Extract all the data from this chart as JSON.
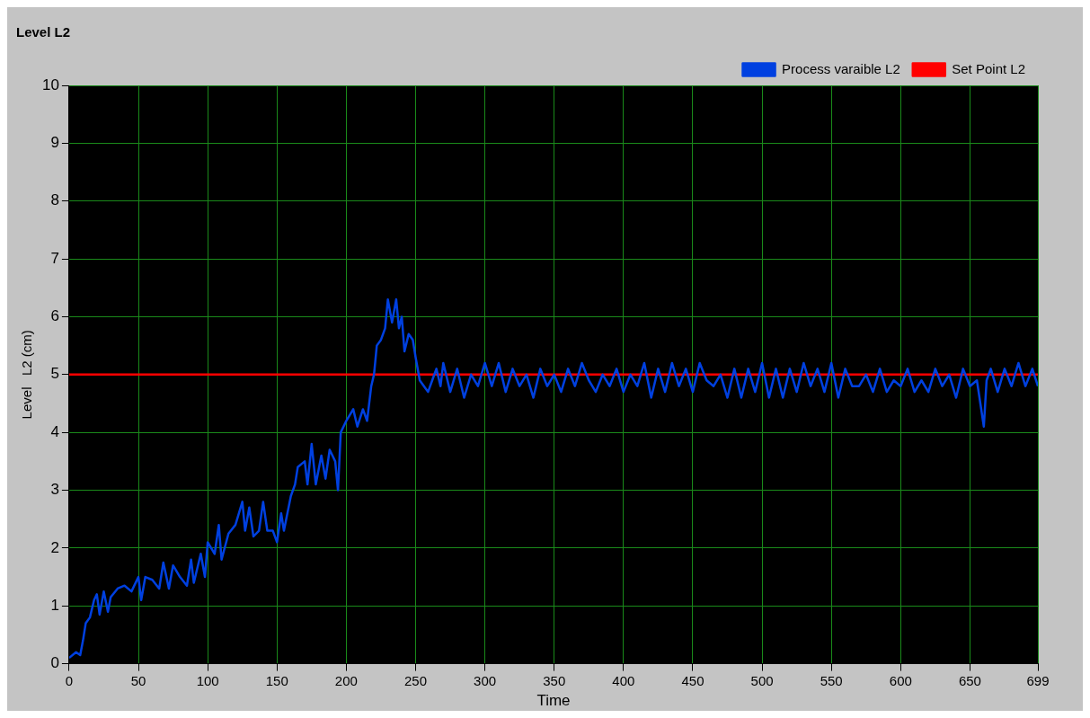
{
  "chart_data": {
    "type": "line",
    "title": "Level L2",
    "xlabel": "Time",
    "ylabel": "Level   L2 (cm)",
    "xlim": [
      0,
      699
    ],
    "ylim": [
      0,
      10
    ],
    "xticks": [
      0,
      50,
      100,
      150,
      200,
      250,
      300,
      350,
      400,
      450,
      500,
      550,
      600,
      650,
      699
    ],
    "yticks": [
      0,
      1,
      2,
      3,
      4,
      5,
      6,
      7,
      8,
      9,
      10
    ],
    "grid": true,
    "legend": "top right",
    "series": [
      {
        "name": "Process varaible L2",
        "color": "#0040e0",
        "x": [
          0,
          5,
          8,
          10,
          12,
          15,
          18,
          20,
          22,
          25,
          28,
          30,
          35,
          40,
          45,
          50,
          52,
          55,
          60,
          65,
          68,
          72,
          75,
          80,
          85,
          88,
          90,
          95,
          98,
          100,
          105,
          108,
          110,
          115,
          120,
          125,
          127,
          130,
          133,
          137,
          140,
          143,
          147,
          150,
          153,
          155,
          160,
          163,
          165,
          170,
          172,
          175,
          178,
          182,
          185,
          188,
          192,
          194,
          196,
          200,
          205,
          208,
          212,
          215,
          218,
          220,
          222,
          225,
          228,
          230,
          233,
          236,
          238,
          240,
          242,
          245,
          248,
          250,
          253,
          256,
          259,
          262,
          265,
          268,
          270,
          275,
          280,
          285,
          290,
          295,
          300,
          305,
          310,
          315,
          320,
          325,
          330,
          335,
          340,
          345,
          350,
          355,
          360,
          365,
          370,
          375,
          380,
          385,
          390,
          395,
          400,
          405,
          410,
          415,
          420,
          425,
          430,
          435,
          440,
          445,
          450,
          455,
          460,
          465,
          470,
          475,
          480,
          485,
          490,
          495,
          500,
          505,
          510,
          515,
          520,
          525,
          530,
          535,
          540,
          545,
          550,
          555,
          560,
          565,
          570,
          575,
          580,
          585,
          590,
          595,
          600,
          605,
          610,
          615,
          620,
          625,
          630,
          635,
          640,
          645,
          650,
          655,
          660,
          662,
          665,
          670,
          675,
          680,
          685,
          690,
          695,
          699
        ],
        "values": [
          0.1,
          0.2,
          0.15,
          0.4,
          0.7,
          0.8,
          1.1,
          1.2,
          0.85,
          1.25,
          0.9,
          1.15,
          1.3,
          1.35,
          1.25,
          1.5,
          1.1,
          1.5,
          1.45,
          1.3,
          1.75,
          1.3,
          1.7,
          1.5,
          1.35,
          1.8,
          1.4,
          1.9,
          1.5,
          2.1,
          1.9,
          2.4,
          1.8,
          2.25,
          2.4,
          2.8,
          2.3,
          2.7,
          2.2,
          2.3,
          2.8,
          2.3,
          2.3,
          2.1,
          2.6,
          2.3,
          2.9,
          3.1,
          3.4,
          3.5,
          3.1,
          3.8,
          3.1,
          3.6,
          3.2,
          3.7,
          3.5,
          3.0,
          4.0,
          4.2,
          4.4,
          4.1,
          4.4,
          4.2,
          4.8,
          5.0,
          5.5,
          5.6,
          5.8,
          6.3,
          5.9,
          6.3,
          5.8,
          6.0,
          5.4,
          5.7,
          5.6,
          5.3,
          4.9,
          4.8,
          4.7,
          4.9,
          5.1,
          4.8,
          5.2,
          4.7,
          5.1,
          4.6,
          5.0,
          4.8,
          5.2,
          4.8,
          5.2,
          4.7,
          5.1,
          4.8,
          5.0,
          4.6,
          5.1,
          4.8,
          5.0,
          4.7,
          5.1,
          4.8,
          5.2,
          4.9,
          4.7,
          5.0,
          4.8,
          5.1,
          4.7,
          5.0,
          4.8,
          5.2,
          4.6,
          5.1,
          4.7,
          5.2,
          4.8,
          5.1,
          4.7,
          5.2,
          4.9,
          4.8,
          5.0,
          4.6,
          5.1,
          4.6,
          5.1,
          4.7,
          5.2,
          4.6,
          5.1,
          4.6,
          5.1,
          4.7,
          5.2,
          4.8,
          5.1,
          4.7,
          5.2,
          4.6,
          5.1,
          4.8,
          4.8,
          5.0,
          4.7,
          5.1,
          4.7,
          4.9,
          4.8,
          5.1,
          4.7,
          4.9,
          4.7,
          5.1,
          4.8,
          5.0,
          4.6,
          5.1,
          4.8,
          4.9,
          4.1,
          4.9,
          5.1,
          4.7,
          5.1,
          4.8,
          5.2,
          4.8,
          5.1,
          4.8
        ]
      },
      {
        "name": "Set Point L2",
        "color": "#ff0000",
        "x": [
          0,
          699
        ],
        "values": [
          5,
          5
        ]
      }
    ]
  }
}
